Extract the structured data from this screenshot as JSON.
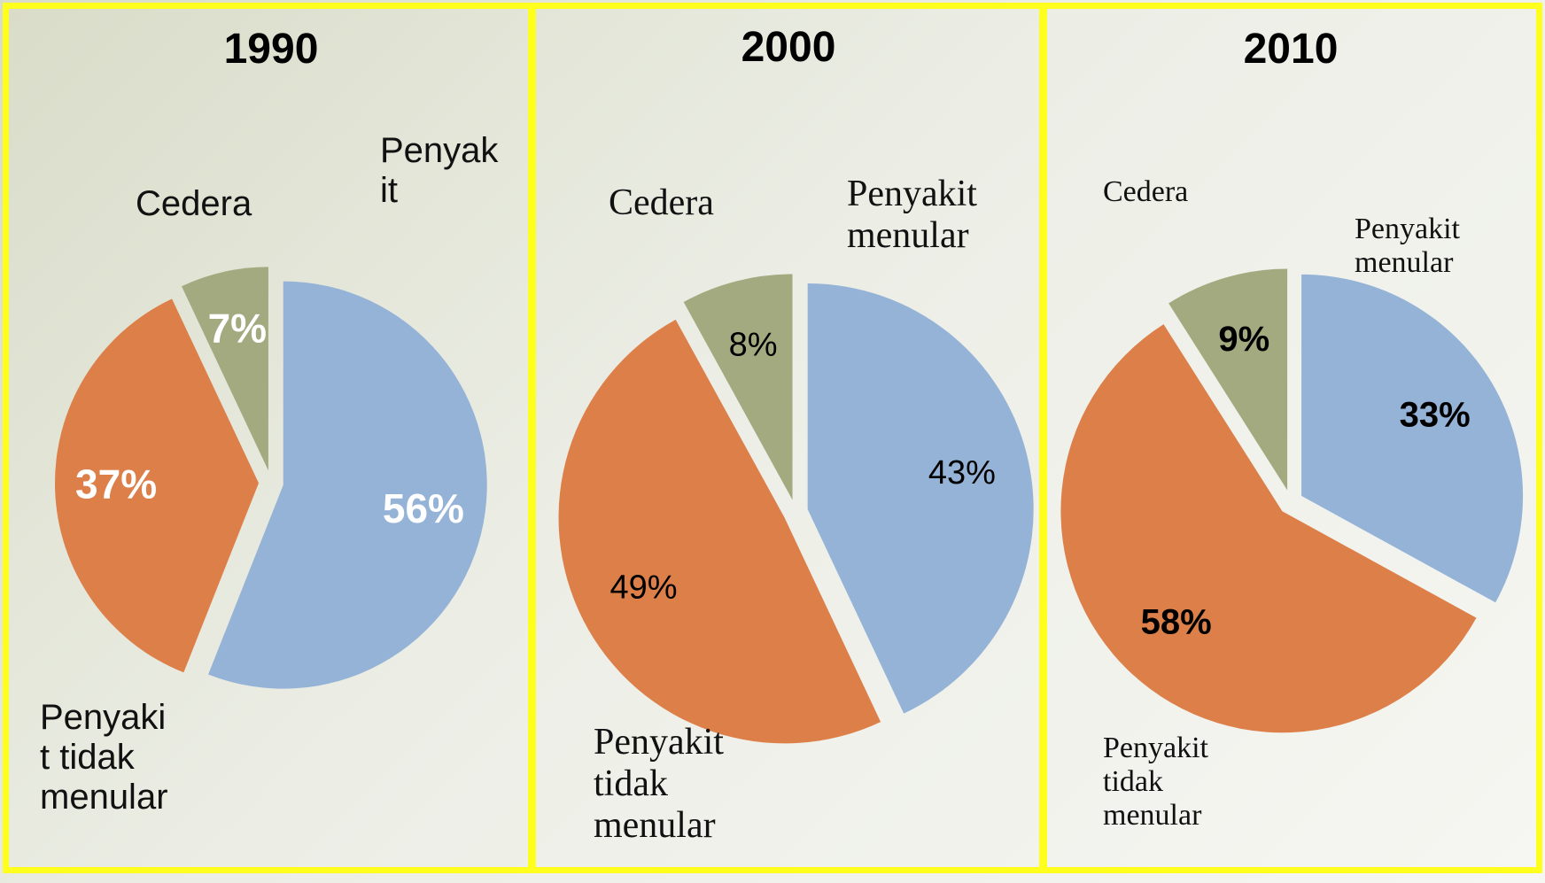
{
  "chart_data": [
    {
      "type": "pie",
      "title": "1990",
      "categories": [
        "Penyak\nit",
        "Penyaki\nt tidak\nmenular",
        "Cedera"
      ],
      "values": [
        56,
        37,
        7
      ],
      "value_labels": [
        "56%",
        "37%",
        "7%"
      ],
      "colors": [
        "#95b3d7",
        "#dd7f49",
        "#a4aa80"
      ]
    },
    {
      "type": "pie",
      "title": "2000",
      "categories": [
        "Penyakit\nmenular",
        "Penyakit\ntidak\nmenular",
        "Cedera"
      ],
      "values": [
        43,
        49,
        8
      ],
      "value_labels": [
        "43%",
        "49%",
        "8%"
      ],
      "colors": [
        "#95b3d7",
        "#dd7f49",
        "#a4aa80"
      ]
    },
    {
      "type": "pie",
      "title": "2010",
      "categories": [
        "Penyakit\nmenular",
        "Penyakit\ntidak\nmenular",
        "Cedera"
      ],
      "values": [
        33,
        58,
        9
      ],
      "value_labels": [
        "33%",
        "58%",
        "9%"
      ],
      "colors": [
        "#95b3d7",
        "#dd7f49",
        "#a4aa80"
      ]
    }
  ]
}
